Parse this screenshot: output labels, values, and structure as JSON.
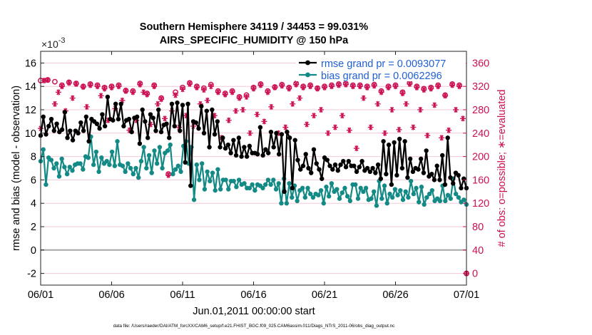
{
  "chart_data": {
    "type": "line",
    "title_line1": "Southern Hemisphere 34119 / 34453 = 99.031%",
    "title_line2": "AIRS_SPECIFIC_HUMIDITY @ 150 hPa",
    "exponent_label": "×10",
    "exponent_power": "-3",
    "ylabel_left": "rmse and bias (model - observation)",
    "ylabel_right": "# of obs: o=possible; ∗=evaluated",
    "xlabel": "Jun.01,2011 00:00:00 start",
    "footnote": "data file: /Users/raeder/DAI/ATM_forcXX/CAM6_setup/f.e21.FHIST_BGC.f09_025.CAM6assim.011/Diags_NTrS_2011-06/obs_diag_output.nc",
    "x_range_days": [
      0,
      30
    ],
    "y_left_range": [
      -3,
      17
    ],
    "y_right_range": [
      -20,
      380
    ],
    "x_ticks": [
      {
        "day": 0,
        "label": "06/01"
      },
      {
        "day": 5,
        "label": "06/06"
      },
      {
        "day": 10,
        "label": "06/11"
      },
      {
        "day": 15,
        "label": "06/16"
      },
      {
        "day": 20,
        "label": "06/21"
      },
      {
        "day": 25,
        "label": "06/26"
      },
      {
        "day": 30,
        "label": "07/01"
      }
    ],
    "y_left_ticks": [
      {
        "v": -2,
        "label": "-2"
      },
      {
        "v": 0,
        "label": "0"
      },
      {
        "v": 2,
        "label": "2"
      },
      {
        "v": 4,
        "label": "4"
      },
      {
        "v": 6,
        "label": "6"
      },
      {
        "v": 8,
        "label": "8"
      },
      {
        "v": 10,
        "label": "10"
      },
      {
        "v": 12,
        "label": "12"
      },
      {
        "v": 14,
        "label": "14"
      },
      {
        "v": 16,
        "label": "16"
      }
    ],
    "y_right_ticks": [
      {
        "v": 0,
        "label": "0"
      },
      {
        "v": 40,
        "label": "40"
      },
      {
        "v": 80,
        "label": "80"
      },
      {
        "v": 120,
        "label": "120"
      },
      {
        "v": 160,
        "label": "160"
      },
      {
        "v": 200,
        "label": "200"
      },
      {
        "v": 240,
        "label": "240"
      },
      {
        "v": 280,
        "label": "280"
      },
      {
        "v": 320,
        "label": "320"
      },
      {
        "v": 360,
        "label": "360"
      }
    ],
    "legend_position": "top-right",
    "grid": true,
    "colors": {
      "rmse": "#000000",
      "bias": "#138a86",
      "obs": "#cc1155",
      "legend_text": "#1f5fd6",
      "zero_line": "#a6a6a6",
      "grid": "#f2c9d8"
    },
    "series": [
      {
        "name": "rmse grand pr = 0.0093077",
        "key": "rmse",
        "values": [
          9.8,
          11.4,
          9.9,
          10.6,
          11.2,
          10.2,
          10.8,
          10.1,
          10.3,
          11.8,
          9.6,
          10.2,
          9.4,
          10.2,
          10.0,
          10.9,
          10.2,
          11.4,
          9.3,
          11.2,
          11.0,
          10.8,
          10.4,
          11.6,
          10.6,
          13.1,
          11.2,
          11.1,
          12.5,
          11.2,
          12.5,
          10.6,
          11.1,
          11.2,
          10.1,
          11.3,
          11.4,
          9.1,
          12.0,
          11.0,
          9.6,
          11.6,
          11.3,
          10.2,
          12.0,
          10.1,
          10.7,
          10.8,
          9.6,
          12.5,
          10.6,
          12.6,
          10.2,
          12.4,
          7.5,
          12.5,
          5.5,
          11.0,
          10.9,
          10.4,
          12.3,
          10.0,
          11.9,
          8.8,
          12.0,
          9.9,
          11.0,
          8.8,
          9.6,
          8.7,
          9.0,
          8.3,
          9.4,
          8.1,
          9.6,
          8.0,
          8.8,
          8.0,
          8.9,
          8.3,
          8.3,
          8.2,
          10.5,
          8.1,
          8.6,
          8.3,
          10.1,
          8.8,
          10.0,
          8.2,
          9.9,
          5.0,
          10.1,
          9.6,
          5.3,
          9.4,
          7.7,
          6.9,
          7.2,
          8.2,
          7.0,
          6.6,
          8.6,
          7.4,
          6.9,
          6.1,
          7.9,
          7.7,
          7.2,
          6.9,
          7.3,
          6.8,
          7.3,
          7.6,
          7.1,
          7.6,
          7.2,
          7.2,
          6.7,
          7.1,
          7.6,
          6.8,
          7.0,
          6.7,
          7.0,
          6.6,
          7.3,
          6.1,
          9.3,
          6.5,
          9.0,
          5.6,
          9.2,
          6.4,
          9.5,
          7.0,
          9.3,
          6.2,
          7.8,
          6.7,
          7.0,
          6.9,
          7.8,
          6.6,
          8.5,
          6.3,
          6.5,
          6.0,
          7.2,
          6.0,
          8.1,
          5.6,
          9.6,
          6.2,
          5.7,
          6.6,
          6.4,
          5.3,
          6.1,
          5.3
        ]
      },
      {
        "name": "bias grand pr = 0.0062296",
        "key": "bias",
        "values": [
          7.6,
          8.6,
          5.6,
          7.9,
          7.7,
          7.0,
          7.4,
          6.3,
          7.8,
          7.1,
          6.5,
          7.1,
          6.8,
          7.3,
          7.4,
          7.4,
          6.9,
          8.0,
          7.9,
          9.7,
          7.3,
          8.4,
          6.7,
          7.9,
          7.4,
          7.6,
          7.3,
          8.4,
          7.2,
          9.3,
          7.3,
          7.2,
          6.7,
          7.4,
          7.0,
          6.5,
          7.0,
          6.2,
          7.6,
          8.8,
          7.0,
          8.1,
          6.6,
          8.5,
          7.4,
          8.8,
          7.0,
          8.3,
          8.5,
          9.0,
          6.5,
          6.9,
          7.2,
          6.7,
          8.9,
          9.3,
          7.4,
          8.8,
          4.3,
          7.3,
          6.0,
          7.4,
          5.2,
          6.7,
          5.9,
          6.6,
          5.1,
          6.9,
          5.2,
          6.0,
          6.0,
          5.2,
          5.9,
          5.9,
          5.4,
          6.0,
          5.6,
          5.7,
          5.3,
          5.3,
          5.6,
          5.1,
          5.6,
          5.5,
          5.3,
          5.6,
          6.0,
          5.6,
          6.0,
          5.2,
          5.7,
          4.0,
          6.1,
          4.0,
          5.7,
          4.5,
          5.5,
          4.2,
          5.1,
          5.3,
          4.5,
          5.3,
          4.8,
          4.5,
          4.8,
          4.7,
          5.1,
          4.0,
          5.4,
          4.6,
          5.7,
          5.0,
          5.2,
          4.4,
          4.9,
          5.3,
          4.6,
          4.2,
          5.6,
          5.6,
          4.4,
          5.3,
          5.0,
          5.3,
          4.3,
          4.4,
          5.0,
          3.8,
          5.9,
          4.4,
          5.5,
          4.0,
          4.8,
          4.5,
          5.2,
          4.7,
          5.1,
          4.3,
          5.0,
          4.5,
          5.9,
          4.8,
          5.3,
          4.1,
          5.4,
          3.9,
          4.5,
          4.8,
          5.1,
          4.2,
          4.4,
          4.2,
          5.5,
          4.2,
          4.7,
          4.4,
          6.1,
          4.8,
          4.5,
          4.1,
          4.3,
          3.9
        ]
      }
    ],
    "obs_possible": [
      [
        0.0,
        330
      ],
      [
        0.5,
        331
      ],
      [
        1.0,
        328
      ],
      [
        1.5,
        322
      ],
      [
        2.0,
        327
      ],
      [
        2.5,
        325
      ],
      [
        3.0,
        320
      ],
      [
        3.5,
        324
      ],
      [
        4.0,
        322
      ],
      [
        4.5,
        318
      ],
      [
        5.0,
        320
      ],
      [
        5.5,
        322
      ],
      [
        6.0,
        313
      ],
      [
        6.5,
        312
      ],
      [
        7.0,
        325
      ],
      [
        7.5,
        308
      ],
      [
        8.0,
        322
      ],
      [
        8.5,
        300
      ],
      [
        9.0,
        170
      ],
      [
        9.5,
        310
      ],
      [
        10.0,
        318
      ],
      [
        10.5,
        326
      ],
      [
        11.0,
        320
      ],
      [
        11.5,
        317
      ],
      [
        12.0,
        323
      ],
      [
        12.5,
        312
      ],
      [
        13.0,
        308
      ],
      [
        13.5,
        312
      ],
      [
        14.0,
        302
      ],
      [
        14.5,
        305
      ],
      [
        15.0,
        318
      ],
      [
        15.5,
        324
      ],
      [
        16.0,
        312
      ],
      [
        16.5,
        319
      ],
      [
        17.0,
        323
      ],
      [
        17.5,
        318
      ],
      [
        18.0,
        325
      ],
      [
        18.5,
        320
      ],
      [
        19.0,
        322
      ],
      [
        19.5,
        317
      ],
      [
        20.0,
        320
      ],
      [
        20.5,
        322
      ],
      [
        21.0,
        324
      ],
      [
        21.5,
        325
      ],
      [
        22.0,
        322
      ],
      [
        22.5,
        322
      ],
      [
        23.0,
        320
      ],
      [
        23.5,
        323
      ],
      [
        24.0,
        312
      ],
      [
        24.5,
        320
      ],
      [
        25.0,
        322
      ],
      [
        25.5,
        310
      ],
      [
        26.0,
        326
      ],
      [
        26.5,
        320
      ],
      [
        27.0,
        316
      ],
      [
        27.5,
        318
      ],
      [
        28.0,
        322
      ],
      [
        28.5,
        305
      ],
      [
        29.0,
        324
      ],
      [
        29.5,
        322
      ],
      [
        30.0,
        0
      ]
    ],
    "obs_evaluated": [
      [
        0.0,
        248
      ],
      [
        0.25,
        330
      ],
      [
        0.5,
        331
      ],
      [
        1.0,
        290
      ],
      [
        1.25,
        310
      ],
      [
        1.5,
        320
      ],
      [
        1.75,
        278
      ],
      [
        2.0,
        326
      ],
      [
        2.25,
        300
      ],
      [
        2.5,
        324
      ],
      [
        3.0,
        319
      ],
      [
        3.25,
        285
      ],
      [
        3.5,
        322
      ],
      [
        4.0,
        320
      ],
      [
        4.25,
        304
      ],
      [
        4.5,
        316
      ],
      [
        4.75,
        262
      ],
      [
        5.0,
        318
      ],
      [
        5.25,
        282
      ],
      [
        5.5,
        320
      ],
      [
        5.75,
        296
      ],
      [
        6.0,
        312
      ],
      [
        6.25,
        245
      ],
      [
        6.5,
        310
      ],
      [
        6.75,
        262
      ],
      [
        7.0,
        323
      ],
      [
        7.25,
        310
      ],
      [
        7.5,
        306
      ],
      [
        7.75,
        255
      ],
      [
        8.0,
        320
      ],
      [
        8.25,
        290
      ],
      [
        8.5,
        298
      ],
      [
        8.75,
        265
      ],
      [
        9.0,
        168
      ],
      [
        9.25,
        278
      ],
      [
        9.5,
        305
      ],
      [
        9.75,
        250
      ],
      [
        10.0,
        315
      ],
      [
        10.25,
        270
      ],
      [
        10.5,
        324
      ],
      [
        10.75,
        252
      ],
      [
        11.0,
        318
      ],
      [
        11.25,
        290
      ],
      [
        11.5,
        314
      ],
      [
        11.75,
        296
      ],
      [
        12.0,
        320
      ],
      [
        12.25,
        270
      ],
      [
        12.5,
        310
      ],
      [
        12.75,
        232
      ],
      [
        13.0,
        306
      ],
      [
        13.25,
        262
      ],
      [
        13.5,
        310
      ],
      [
        13.75,
        278
      ],
      [
        14.0,
        300
      ],
      [
        14.25,
        280
      ],
      [
        14.5,
        302
      ],
      [
        14.75,
        240
      ],
      [
        15.0,
        316
      ],
      [
        15.25,
        272
      ],
      [
        15.5,
        322
      ],
      [
        15.75,
        260
      ],
      [
        16.0,
        310
      ],
      [
        16.25,
        285
      ],
      [
        16.5,
        318
      ],
      [
        16.75,
        240
      ],
      [
        17.0,
        321
      ],
      [
        17.25,
        250
      ],
      [
        17.5,
        316
      ],
      [
        17.75,
        290
      ],
      [
        18.0,
        323
      ],
      [
        18.25,
        300
      ],
      [
        18.5,
        318
      ],
      [
        18.75,
        255
      ],
      [
        19.0,
        320
      ],
      [
        19.25,
        270
      ],
      [
        19.5,
        316
      ],
      [
        19.75,
        280
      ],
      [
        20.0,
        318
      ],
      [
        20.25,
        240
      ],
      [
        20.5,
        320
      ],
      [
        20.75,
        250
      ],
      [
        21.0,
        322
      ],
      [
        21.25,
        270
      ],
      [
        21.5,
        323
      ],
      [
        21.75,
        245
      ],
      [
        22.0,
        320
      ],
      [
        22.25,
        214
      ],
      [
        22.5,
        320
      ],
      [
        22.75,
        300
      ],
      [
        23.0,
        318
      ],
      [
        23.25,
        250
      ],
      [
        23.5,
        321
      ],
      [
        23.75,
        290
      ],
      [
        24.0,
        310
      ],
      [
        24.25,
        240
      ],
      [
        24.5,
        318
      ],
      [
        24.75,
        280
      ],
      [
        25.0,
        320
      ],
      [
        25.25,
        246
      ],
      [
        25.5,
        308
      ],
      [
        25.75,
        290
      ],
      [
        26.0,
        324
      ],
      [
        26.25,
        250
      ],
      [
        26.5,
        318
      ],
      [
        26.75,
        280
      ],
      [
        27.0,
        314
      ],
      [
        27.25,
        236
      ],
      [
        27.5,
        316
      ],
      [
        27.75,
        288
      ],
      [
        28.0,
        320
      ],
      [
        28.25,
        232
      ],
      [
        28.5,
        304
      ],
      [
        28.75,
        245
      ],
      [
        29.0,
        322
      ],
      [
        29.25,
        280
      ],
      [
        29.5,
        320
      ],
      [
        29.75,
        265
      ],
      [
        30.0,
        0
      ]
    ]
  }
}
